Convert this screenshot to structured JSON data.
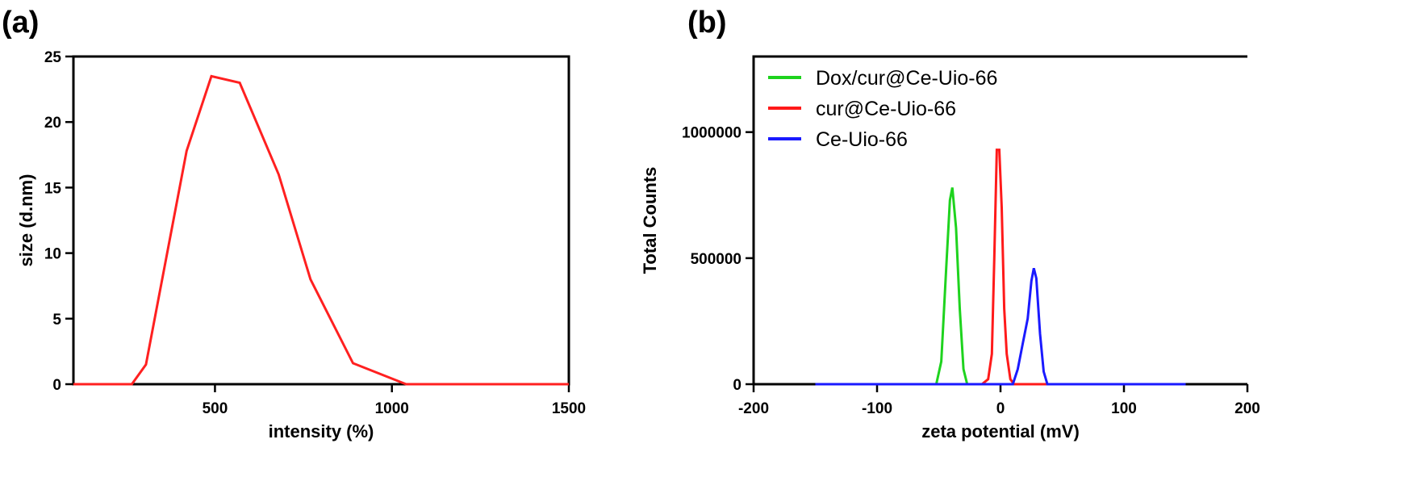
{
  "chart_data": [
    {
      "panel_label": "(a)",
      "type": "line",
      "xlabel": "intensity (%)",
      "ylabel": "size (d.nm)",
      "xlim": [
        100,
        1500
      ],
      "ylim": [
        0,
        25
      ],
      "xticks": [
        500,
        1000,
        1500
      ],
      "yticks": [
        0,
        5,
        10,
        15,
        20,
        25
      ],
      "grid": false,
      "border": "full box",
      "series": [
        {
          "color": "#ff2020",
          "x": [
            100,
            265,
            305,
            420,
            490,
            570,
            680,
            770,
            890,
            1040,
            1500
          ],
          "y": [
            0,
            0,
            1.5,
            17.8,
            23.5,
            23.0,
            16.0,
            8.0,
            1.6,
            0,
            0
          ]
        }
      ]
    },
    {
      "panel_label": "(b)",
      "type": "line",
      "xlabel": "zeta potential (mV)",
      "ylabel": "Total Counts",
      "xlim": [
        -200,
        200
      ],
      "ylim": [
        0,
        1300000
      ],
      "xticks": [
        -200,
        -100,
        0,
        100,
        200
      ],
      "yticks": [
        0,
        500000,
        1000000
      ],
      "grid": false,
      "border": "box open at right",
      "legend_position": "top-left",
      "series": [
        {
          "name": "Dox/cur@Ce-Uio-66",
          "color": "#1ed31e",
          "x": [
            -150,
            -52,
            -48,
            -44,
            -41,
            -39,
            -36,
            -33,
            -30,
            -27,
            150
          ],
          "y": [
            0,
            0,
            90000,
            460000,
            730000,
            780000,
            620000,
            300000,
            60000,
            0,
            0
          ]
        },
        {
          "name": "cur@Ce-Uio-66",
          "color": "#ff1a1a",
          "x": [
            -150,
            -15,
            -10,
            -7,
            -5,
            -3,
            -1,
            1,
            3,
            5,
            8,
            11,
            150
          ],
          "y": [
            0,
            0,
            20000,
            120000,
            500000,
            930000,
            930000,
            700000,
            300000,
            120000,
            20000,
            0,
            0
          ]
        },
        {
          "name": "Ce-Uio-66",
          "color": "#1a1aff",
          "x": [
            -150,
            10,
            14,
            18,
            22,
            25,
            27,
            29,
            32,
            35,
            38,
            150
          ],
          "y": [
            0,
            0,
            60000,
            160000,
            260000,
            410000,
            460000,
            420000,
            200000,
            50000,
            0,
            0
          ]
        }
      ]
    }
  ]
}
